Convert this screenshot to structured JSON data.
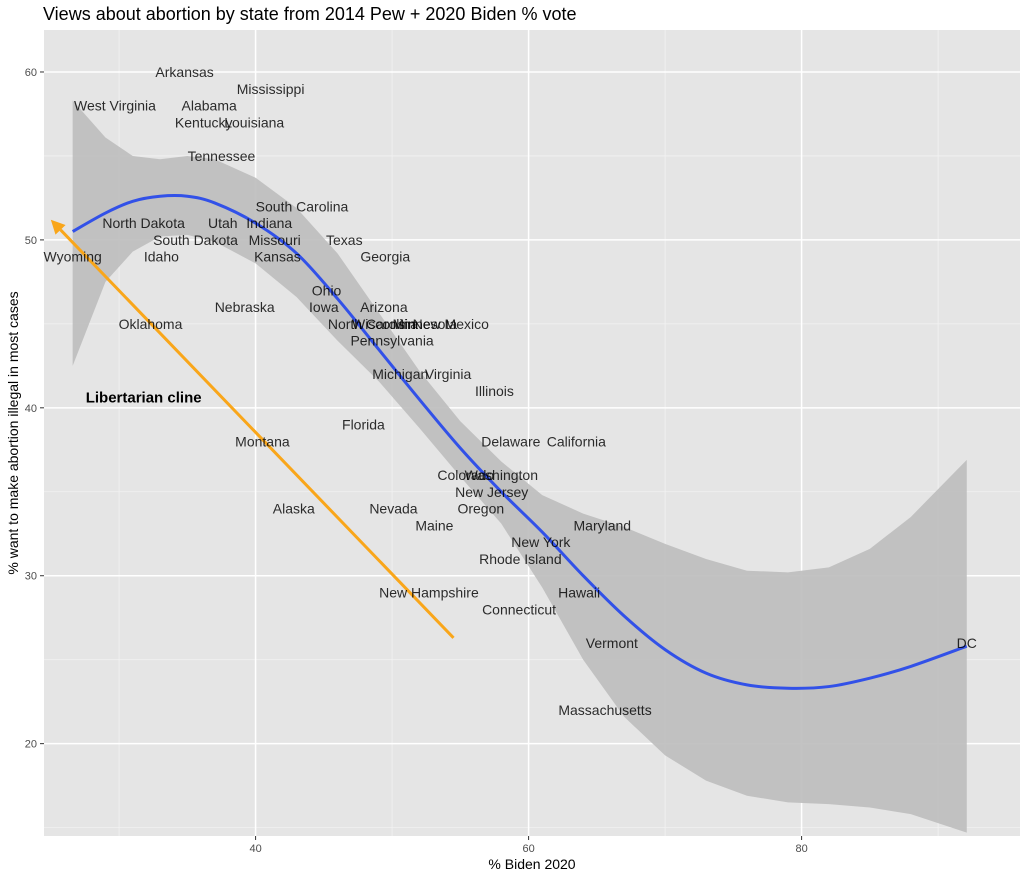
{
  "chart_data": {
    "type": "scatter",
    "title": "Views about abortion by state from 2014 Pew + 2020 Biden % vote",
    "xlabel": "% Biden 2020",
    "ylabel": "% want to make abortion illegal in most cases",
    "xlim": [
      24.5,
      96
    ],
    "ylim": [
      14.5,
      62.5
    ],
    "xticks": [
      40,
      60,
      80
    ],
    "yticks": [
      20,
      30,
      40,
      50,
      60
    ],
    "grid": true,
    "points": [
      {
        "label": "Arkansas",
        "x": 34.8,
        "y": 60
      },
      {
        "label": "Mississippi",
        "x": 41.1,
        "y": 59
      },
      {
        "label": "West Virginia",
        "x": 29.7,
        "y": 58
      },
      {
        "label": "Alabama",
        "x": 36.6,
        "y": 58
      },
      {
        "label": "Kentucky",
        "x": 36.2,
        "y": 57
      },
      {
        "label": "Louisiana",
        "x": 39.9,
        "y": 57
      },
      {
        "label": "Tennessee",
        "x": 37.5,
        "y": 55
      },
      {
        "label": "South Carolina",
        "x": 43.4,
        "y": 52
      },
      {
        "label": "North Dakota",
        "x": 31.8,
        "y": 51
      },
      {
        "label": "Utah",
        "x": 37.6,
        "y": 51
      },
      {
        "label": "Indiana",
        "x": 41.0,
        "y": 51
      },
      {
        "label": "South Dakota",
        "x": 35.6,
        "y": 50
      },
      {
        "label": "Missouri",
        "x": 41.4,
        "y": 50
      },
      {
        "label": "Texas",
        "x": 46.5,
        "y": 50
      },
      {
        "label": "Wyoming",
        "x": 26.6,
        "y": 49
      },
      {
        "label": "Idaho",
        "x": 33.1,
        "y": 49
      },
      {
        "label": "Kansas",
        "x": 41.6,
        "y": 49
      },
      {
        "label": "Georgia",
        "x": 49.5,
        "y": 49
      },
      {
        "label": "Ohio",
        "x": 45.2,
        "y": 47
      },
      {
        "label": "Nebraska",
        "x": 39.2,
        "y": 46
      },
      {
        "label": "Iowa",
        "x": 45.0,
        "y": 46
      },
      {
        "label": "Arizona",
        "x": 49.4,
        "y": 46
      },
      {
        "label": "Oklahoma",
        "x": 32.3,
        "y": 45
      },
      {
        "label": "North Carolina",
        "x": 48.6,
        "y": 45
      },
      {
        "label": "Wisconsin",
        "x": 49.4,
        "y": 45
      },
      {
        "label": "Minnesota",
        "x": 52.4,
        "y": 45
      },
      {
        "label": "New Mexico",
        "x": 54.3,
        "y": 45
      },
      {
        "label": "Pennsylvania",
        "x": 50.0,
        "y": 44
      },
      {
        "label": "Michigan",
        "x": 50.6,
        "y": 42
      },
      {
        "label": "Virginia",
        "x": 54.1,
        "y": 42
      },
      {
        "label": "Illinois",
        "x": 57.5,
        "y": 41
      },
      {
        "label": "Libertarian cline",
        "x": 31.8,
        "y": 40.6
      },
      {
        "label": "Florida",
        "x": 47.9,
        "y": 39
      },
      {
        "label": "Montana",
        "x": 40.5,
        "y": 38
      },
      {
        "label": "Delaware",
        "x": 58.7,
        "y": 38
      },
      {
        "label": "California",
        "x": 63.5,
        "y": 38
      },
      {
        "label": "Colorado",
        "x": 55.4,
        "y": 36
      },
      {
        "label": "Washington",
        "x": 58.0,
        "y": 36
      },
      {
        "label": "New Jersey",
        "x": 57.3,
        "y": 35
      },
      {
        "label": "Alaska",
        "x": 42.8,
        "y": 34
      },
      {
        "label": "Nevada",
        "x": 50.1,
        "y": 34
      },
      {
        "label": "Oregon",
        "x": 56.5,
        "y": 34
      },
      {
        "label": "Maine",
        "x": 53.1,
        "y": 33
      },
      {
        "label": "Maryland",
        "x": 65.4,
        "y": 33
      },
      {
        "label": "New York",
        "x": 60.9,
        "y": 32
      },
      {
        "label": "Rhode Island",
        "x": 59.4,
        "y": 31
      },
      {
        "label": "New Hampshire",
        "x": 52.7,
        "y": 29
      },
      {
        "label": "Hawaii",
        "x": 63.7,
        "y": 29
      },
      {
        "label": "Connecticut",
        "x": 59.3,
        "y": 28
      },
      {
        "label": "Vermont",
        "x": 66.1,
        "y": 26
      },
      {
        "label": "DC",
        "x": 92.1,
        "y": 26
      },
      {
        "label": "Massachusetts",
        "x": 65.6,
        "y": 22
      }
    ],
    "smooth": {
      "x": [
        26.6,
        29,
        31,
        33,
        35,
        37,
        40,
        43,
        46,
        49,
        52,
        55,
        58,
        61,
        64,
        67,
        70,
        73,
        76,
        79,
        82,
        85,
        88,
        92.1
      ],
      "y": [
        50.5,
        51.6,
        52.3,
        52.6,
        52.6,
        52.2,
        51.0,
        49.2,
        46.5,
        43.5,
        40.5,
        37.6,
        35.0,
        32.6,
        30.0,
        27.6,
        25.6,
        24.2,
        23.5,
        23.3,
        23.4,
        23.9,
        24.6,
        25.8
      ],
      "lower": [
        42.5,
        47.5,
        49.3,
        50.2,
        50.3,
        49.9,
        48.6,
        46.6,
        44.0,
        41.6,
        38.8,
        35.9,
        33.1,
        29.3,
        25.0,
        21.6,
        19.3,
        17.8,
        16.9,
        16.5,
        16.4,
        16.2,
        15.8,
        14.7
      ],
      "upper": [
        58.3,
        56.1,
        55.0,
        54.8,
        55.0,
        54.8,
        53.7,
        51.9,
        49.2,
        45.7,
        42.2,
        39.2,
        36.8,
        34.8,
        33.7,
        32.9,
        31.9,
        31.0,
        30.3,
        30.2,
        30.5,
        31.6,
        33.5,
        36.9
      ]
    },
    "arrow": {
      "label": "Libertarian cline",
      "from": [
        54.5,
        26.3
      ],
      "to": [
        25.0,
        51.2
      ],
      "color": "#f9a61a"
    },
    "colors": {
      "panel": "#e5e5e5",
      "grid_major": "#ffffff",
      "smooth_line": "#3251e8",
      "ribbon": "#bdbdbd",
      "arrow": "#f9a61a",
      "text_dark": "#000000",
      "text_muted": "#333333"
    }
  }
}
